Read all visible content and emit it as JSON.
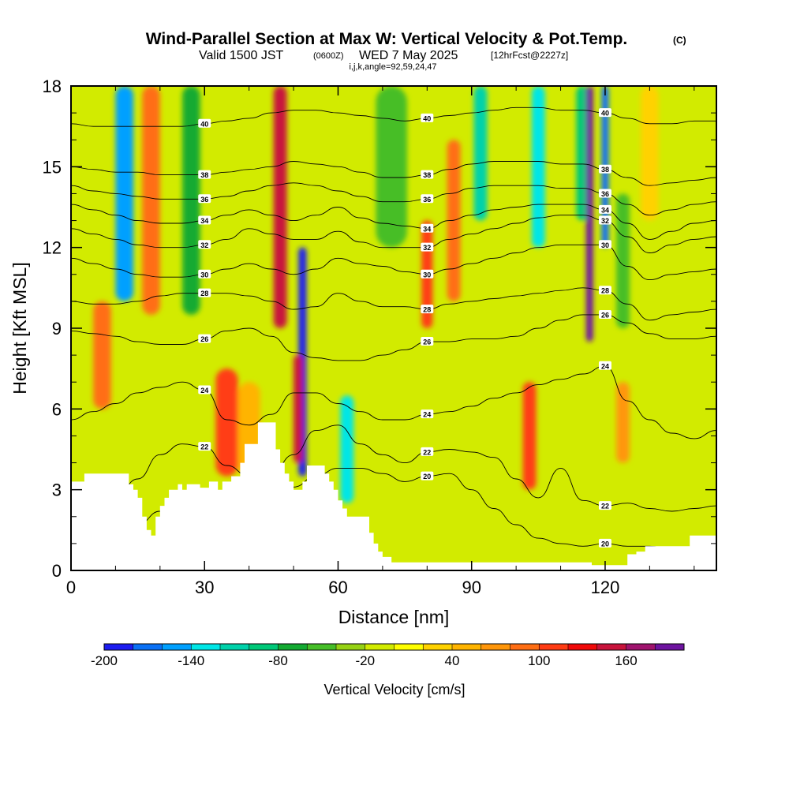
{
  "title": {
    "main": "Wind-Parallel Section at Max W: Vertical Velocity & Pot.Temp.",
    "main_mark": "(C)",
    "line2_a": "Valid 1500 JST",
    "line2_b": "(0600Z)",
    "line2_c": "WED 7 May 2025",
    "line2_d": "[12hrFcst@2227z]",
    "line3": "i,j,k,angle=92,59,24,47"
  },
  "chart_data": {
    "type": "heatmap",
    "xlabel": "Distance [nm]",
    "ylabel": "Height [Kft MSL]",
    "xlim": [
      0,
      145
    ],
    "ylim": [
      0,
      18
    ],
    "x_ticks": [
      0,
      30,
      60,
      90,
      120
    ],
    "y_ticks": [
      0,
      3,
      6,
      9,
      12,
      15,
      18
    ],
    "colorbar": {
      "title": "Vertical Velocity [cm/s]",
      "min": -200,
      "max": 200,
      "step": 20,
      "tick_labels": [
        "-200",
        "-140",
        "-80",
        "-20",
        "40",
        "100",
        "160"
      ],
      "colors": [
        "#1c1cf0",
        "#0a70f5",
        "#00a0ff",
        "#00e6e6",
        "#00d2aa",
        "#00c878",
        "#14aa32",
        "#46be28",
        "#96d214",
        "#d2eb00",
        "#ffff00",
        "#ffd200",
        "#ffb400",
        "#ff960a",
        "#ff6e14",
        "#ff3c14",
        "#f00a0a",
        "#c8143c",
        "#a0146e",
        "#6e14a0"
      ]
    },
    "vertical_velocity_features": [
      {
        "x": 12,
        "w": 4,
        "z": [
          10,
          18
        ],
        "value": -150
      },
      {
        "x": 18,
        "w": 4,
        "z": [
          9.5,
          18
        ],
        "value": 80
      },
      {
        "x": 27,
        "w": 4,
        "z": [
          9.5,
          18
        ],
        "value": -70
      },
      {
        "x": 47,
        "w": 3,
        "z": [
          9,
          18
        ],
        "value": 140
      },
      {
        "x": 52,
        "w": 1.8,
        "z": [
          3.5,
          12
        ],
        "value": -190
      },
      {
        "x": 51,
        "w": 2,
        "z": [
          4,
          8
        ],
        "value": 150
      },
      {
        "x": 35,
        "w": 5,
        "z": [
          3.5,
          7.5
        ],
        "value": 110
      },
      {
        "x": 40,
        "w": 5,
        "z": [
          3.5,
          7
        ],
        "value": 40
      },
      {
        "x": 62,
        "w": 3,
        "z": [
          2.5,
          6.5
        ],
        "value": -130
      },
      {
        "x": 72,
        "w": 7,
        "z": [
          12,
          18
        ],
        "value": -60
      },
      {
        "x": 80,
        "w": 2.5,
        "z": [
          9,
          13
        ],
        "value": 110
      },
      {
        "x": 86,
        "w": 3,
        "z": [
          10,
          16
        ],
        "value": 80
      },
      {
        "x": 92,
        "w": 3,
        "z": [
          13,
          18
        ],
        "value": -120
      },
      {
        "x": 103,
        "w": 3,
        "z": [
          3,
          7
        ],
        "value": 110
      },
      {
        "x": 105,
        "w": 3,
        "z": [
          12,
          18
        ],
        "value": -140
      },
      {
        "x": 115,
        "w": 3,
        "z": [
          13,
          18
        ],
        "value": -90
      },
      {
        "x": 116.5,
        "w": 1.6,
        "z": [
          8.5,
          18
        ],
        "value": 190
      },
      {
        "x": 120,
        "w": 1.6,
        "z": [
          12,
          18
        ],
        "value": -170
      },
      {
        "x": 124,
        "w": 3,
        "z": [
          9,
          14
        ],
        "value": -60
      },
      {
        "x": 130,
        "w": 4,
        "z": [
          13,
          18
        ],
        "value": 30
      },
      {
        "x": 7,
        "w": 4,
        "z": [
          6,
          10
        ],
        "value": 80
      },
      {
        "x": 124,
        "w": 3,
        "z": [
          4,
          7
        ],
        "value": 60
      }
    ],
    "terrain_height": [
      [
        0,
        3.3
      ],
      [
        3,
        3.6
      ],
      [
        12,
        3.6
      ],
      [
        13,
        3.2
      ],
      [
        14,
        3.0
      ],
      [
        15,
        2.7
      ],
      [
        16,
        2.0
      ],
      [
        17,
        1.5
      ],
      [
        18,
        1.3
      ],
      [
        19,
        2.0
      ],
      [
        20,
        2.4
      ],
      [
        21,
        2.7
      ],
      [
        22,
        3.0
      ],
      [
        24,
        3.2
      ],
      [
        25,
        3.0
      ],
      [
        26,
        3.2
      ],
      [
        27,
        3.2
      ],
      [
        28,
        3.2
      ],
      [
        29,
        3.0
      ],
      [
        31,
        3.3
      ],
      [
        33,
        3.0
      ],
      [
        34,
        3.3
      ],
      [
        36,
        3.5
      ],
      [
        38,
        4.0
      ],
      [
        39,
        4.7
      ],
      [
        42,
        5.5
      ],
      [
        45,
        5.5
      ],
      [
        46,
        4.5
      ],
      [
        47,
        4.0
      ],
      [
        48,
        3.6
      ],
      [
        49,
        3.3
      ],
      [
        50,
        3.0
      ],
      [
        52,
        3.3
      ],
      [
        53,
        3.9
      ],
      [
        56,
        3.9
      ],
      [
        57,
        3.6
      ],
      [
        58,
        3.3
      ],
      [
        59,
        3.0
      ],
      [
        60,
        2.6
      ],
      [
        61,
        2.3
      ],
      [
        62,
        2.0
      ],
      [
        67,
        1.4
      ],
      [
        68,
        1.0
      ],
      [
        69,
        0.7
      ],
      [
        70,
        0.5
      ],
      [
        72,
        0.3
      ],
      [
        100,
        0.3
      ],
      [
        115,
        0.3
      ],
      [
        117,
        0.2
      ],
      [
        125,
        0.6
      ],
      [
        127,
        0.7
      ],
      [
        129,
        0.9
      ],
      [
        139,
        1.3
      ],
      [
        145,
        1.3
      ]
    ],
    "theta_contours": [
      {
        "label": "20",
        "z": [
          0.8,
          0.9,
          1.2,
          1.7,
          2.2,
          2.6,
          2.9,
          2.8,
          2.5,
          2.6,
          3.1,
          3.5,
          3.8,
          3.8,
          3.6,
          3.3,
          3.5,
          3.6,
          3.0,
          2.3,
          1.7,
          1.2,
          1.0,
          0.9,
          1.0,
          0.9,
          0.9,
          0.8,
          0.8,
          0.9
        ]
      },
      {
        "label": "22",
        "z": [
          1.8,
          2.3,
          2.7,
          3.4,
          4.3,
          4.7,
          4.6,
          3.9,
          3.5,
          3.6,
          4.3,
          5.2,
          5.4,
          4.7,
          4.3,
          4.0,
          4.4,
          4.5,
          4.4,
          4.2,
          3.4,
          2.7,
          3.8,
          2.6,
          2.4,
          2.5,
          2.3,
          2.2,
          2.3,
          2.4
        ]
      },
      {
        "label": "24",
        "z": [
          5.6,
          5.9,
          6.2,
          6.6,
          6.8,
          7.0,
          6.7,
          5.6,
          5.4,
          5.8,
          6.6,
          6.6,
          6.2,
          5.9,
          5.6,
          5.6,
          5.8,
          5.9,
          6.1,
          6.4,
          6.6,
          6.9,
          7.1,
          7.3,
          7.6,
          6.3,
          5.6,
          5.1,
          4.9,
          5.2
        ]
      },
      {
        "label": "26",
        "z": [
          8.9,
          8.8,
          8.7,
          8.5,
          8.4,
          8.4,
          8.6,
          8.9,
          9.0,
          8.7,
          8.1,
          7.9,
          7.8,
          7.8,
          8.0,
          8.2,
          8.5,
          8.5,
          8.6,
          8.6,
          8.7,
          9.0,
          9.3,
          9.5,
          9.5,
          9.2,
          8.8,
          8.6,
          8.6,
          8.7
        ]
      },
      {
        "label": "28",
        "z": [
          10.0,
          9.9,
          9.9,
          10.0,
          10.2,
          10.3,
          10.3,
          10.3,
          10.2,
          10.0,
          9.7,
          9.8,
          10.3,
          10.0,
          9.8,
          9.8,
          9.7,
          9.9,
          10.0,
          10.1,
          10.2,
          10.3,
          10.4,
          10.5,
          10.4,
          9.9,
          9.3,
          9.5,
          9.6,
          9.7
        ]
      },
      {
        "label": "30",
        "z": [
          11.6,
          11.4,
          11.2,
          11.0,
          10.9,
          10.9,
          11.0,
          11.2,
          11.4,
          11.2,
          11.0,
          11.2,
          11.6,
          11.4,
          11.3,
          11.1,
          11.0,
          11.2,
          11.4,
          11.6,
          11.8,
          12.0,
          12.1,
          12.1,
          12.1,
          11.3,
          10.8,
          11.0,
          11.1,
          11.2
        ]
      },
      {
        "label": "32",
        "z": [
          12.7,
          12.5,
          12.3,
          12.1,
          12.0,
          12.0,
          12.1,
          12.3,
          12.7,
          12.5,
          12.3,
          12.3,
          12.6,
          12.2,
          12.0,
          12.0,
          12.0,
          12.3,
          12.5,
          12.7,
          12.9,
          13.1,
          13.2,
          13.2,
          13.0,
          12.4,
          11.8,
          12.1,
          12.3,
          12.4
        ]
      },
      {
        "label": "34",
        "z": [
          13.6,
          13.4,
          13.2,
          13.0,
          12.9,
          12.9,
          13.0,
          13.2,
          13.4,
          13.2,
          13.0,
          13.2,
          13.5,
          13.1,
          12.9,
          12.8,
          12.7,
          13.0,
          13.2,
          13.4,
          13.5,
          13.6,
          13.6,
          13.6,
          13.4,
          12.9,
          12.3,
          12.6,
          12.9,
          13.0
        ]
      },
      {
        "label": "36",
        "z": [
          14.3,
          14.1,
          14.0,
          13.9,
          13.8,
          13.8,
          13.8,
          13.9,
          14.1,
          14.3,
          14.4,
          14.3,
          14.1,
          13.9,
          13.7,
          13.7,
          13.8,
          14.0,
          14.2,
          14.3,
          14.3,
          14.3,
          14.2,
          14.2,
          14.0,
          13.6,
          13.2,
          13.4,
          13.6,
          13.7
        ]
      },
      {
        "label": "38",
        "z": [
          15.0,
          14.9,
          14.8,
          14.8,
          14.7,
          14.7,
          14.7,
          14.8,
          14.9,
          15.0,
          15.2,
          15.1,
          15.0,
          14.8,
          14.6,
          14.6,
          14.7,
          14.9,
          15.1,
          15.2,
          15.2,
          15.2,
          15.1,
          15.1,
          14.9,
          14.6,
          14.3,
          14.4,
          14.5,
          14.6
        ]
      },
      {
        "label": "40",
        "z": [
          16.6,
          16.5,
          16.5,
          16.5,
          16.5,
          16.5,
          16.6,
          16.7,
          16.8,
          17.0,
          17.1,
          17.1,
          17.0,
          16.9,
          16.8,
          16.7,
          16.8,
          16.9,
          17.0,
          17.1,
          17.2,
          17.2,
          17.1,
          17.1,
          17.0,
          16.8,
          16.6,
          16.6,
          16.7,
          16.7
        ]
      }
    ]
  }
}
